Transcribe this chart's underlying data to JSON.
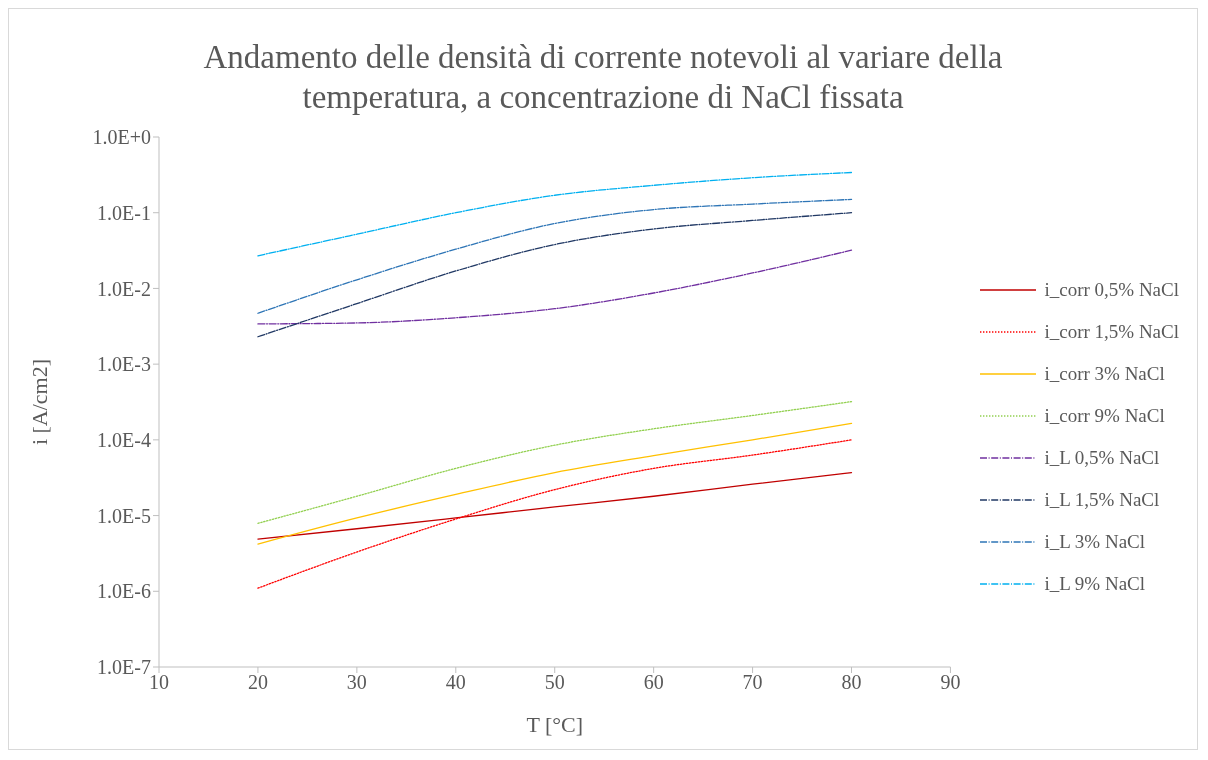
{
  "chart_data": {
    "type": "line",
    "title": "Andamento delle densità di corrente notevoli al variare della temperatura, a concentrazione di NaCl fissata",
    "xlabel": "T [°C]",
    "ylabel": "i [A/cm2]",
    "x": [
      20,
      30,
      40,
      50,
      60,
      70,
      80
    ],
    "series": [
      {
        "name": "i_corr 0,5% NaCl",
        "color": "#c00000",
        "line_style": "solid",
        "values": [
          4.9e-06,
          6.7e-06,
          9.3e-06,
          1.3e-05,
          1.8e-05,
          2.6e-05,
          3.7e-05
        ]
      },
      {
        "name": "i_corr 1,5% NaCl",
        "color": "#ff0000",
        "line_style": "dotted",
        "values": [
          1.1e-06,
          3.3e-06,
          9e-06,
          2.2e-05,
          4.2e-05,
          6.3e-05,
          0.0001
        ]
      },
      {
        "name": "i_corr 3% NaCl",
        "color": "#ffc000",
        "line_style": "solid",
        "values": [
          4.2e-06,
          9.3e-06,
          1.9e-05,
          3.7e-05,
          6.2e-05,
          0.0001,
          0.000165
        ]
      },
      {
        "name": "i_corr 9% NaCl",
        "color": "#92d050",
        "line_style": "dotted",
        "values": [
          7.9e-06,
          1.8e-05,
          4.2e-05,
          8.5e-05,
          0.00014,
          0.00021,
          0.00032
        ]
      },
      {
        "name": "i_L 0,5% NaCl",
        "color": "#7030a0",
        "line_style": "dashed",
        "values": [
          0.0034,
          0.0035,
          0.0041,
          0.0054,
          0.0087,
          0.016,
          0.032
        ]
      },
      {
        "name": "i_L 1,5% NaCl",
        "color": "#203864",
        "line_style": "dashed",
        "values": [
          0.0023,
          0.0063,
          0.017,
          0.038,
          0.061,
          0.079,
          0.1
        ]
      },
      {
        "name": "i_L 3% NaCl",
        "color": "#2e75b6",
        "line_style": "dashed",
        "values": [
          0.0047,
          0.013,
          0.033,
          0.072,
          0.11,
          0.13,
          0.15
        ]
      },
      {
        "name": "i_L 9% NaCl",
        "color": "#00b0f0",
        "line_style": "dashed",
        "values": [
          0.027,
          0.052,
          0.1,
          0.17,
          0.23,
          0.29,
          0.34
        ]
      }
    ],
    "xlim": [
      10,
      90
    ],
    "xticks": [
      10,
      20,
      30,
      40,
      50,
      60,
      70,
      80,
      90
    ],
    "ylim": [
      1e-07,
      1
    ],
    "yticks": [
      {
        "value": 1e-07,
        "label": "1.0E-7"
      },
      {
        "value": 1e-06,
        "label": "1.0E-6"
      },
      {
        "value": 1e-05,
        "label": "1.0E-5"
      },
      {
        "value": 0.0001,
        "label": "1.0E-4"
      },
      {
        "value": 0.001,
        "label": "1.0E-3"
      },
      {
        "value": 0.01,
        "label": "1.0E-2"
      },
      {
        "value": 0.1,
        "label": "1.0E-1"
      },
      {
        "value": 1,
        "label": "1.0E+0"
      }
    ],
    "log": "y",
    "grid": false,
    "legend": "right",
    "marker": "none"
  }
}
